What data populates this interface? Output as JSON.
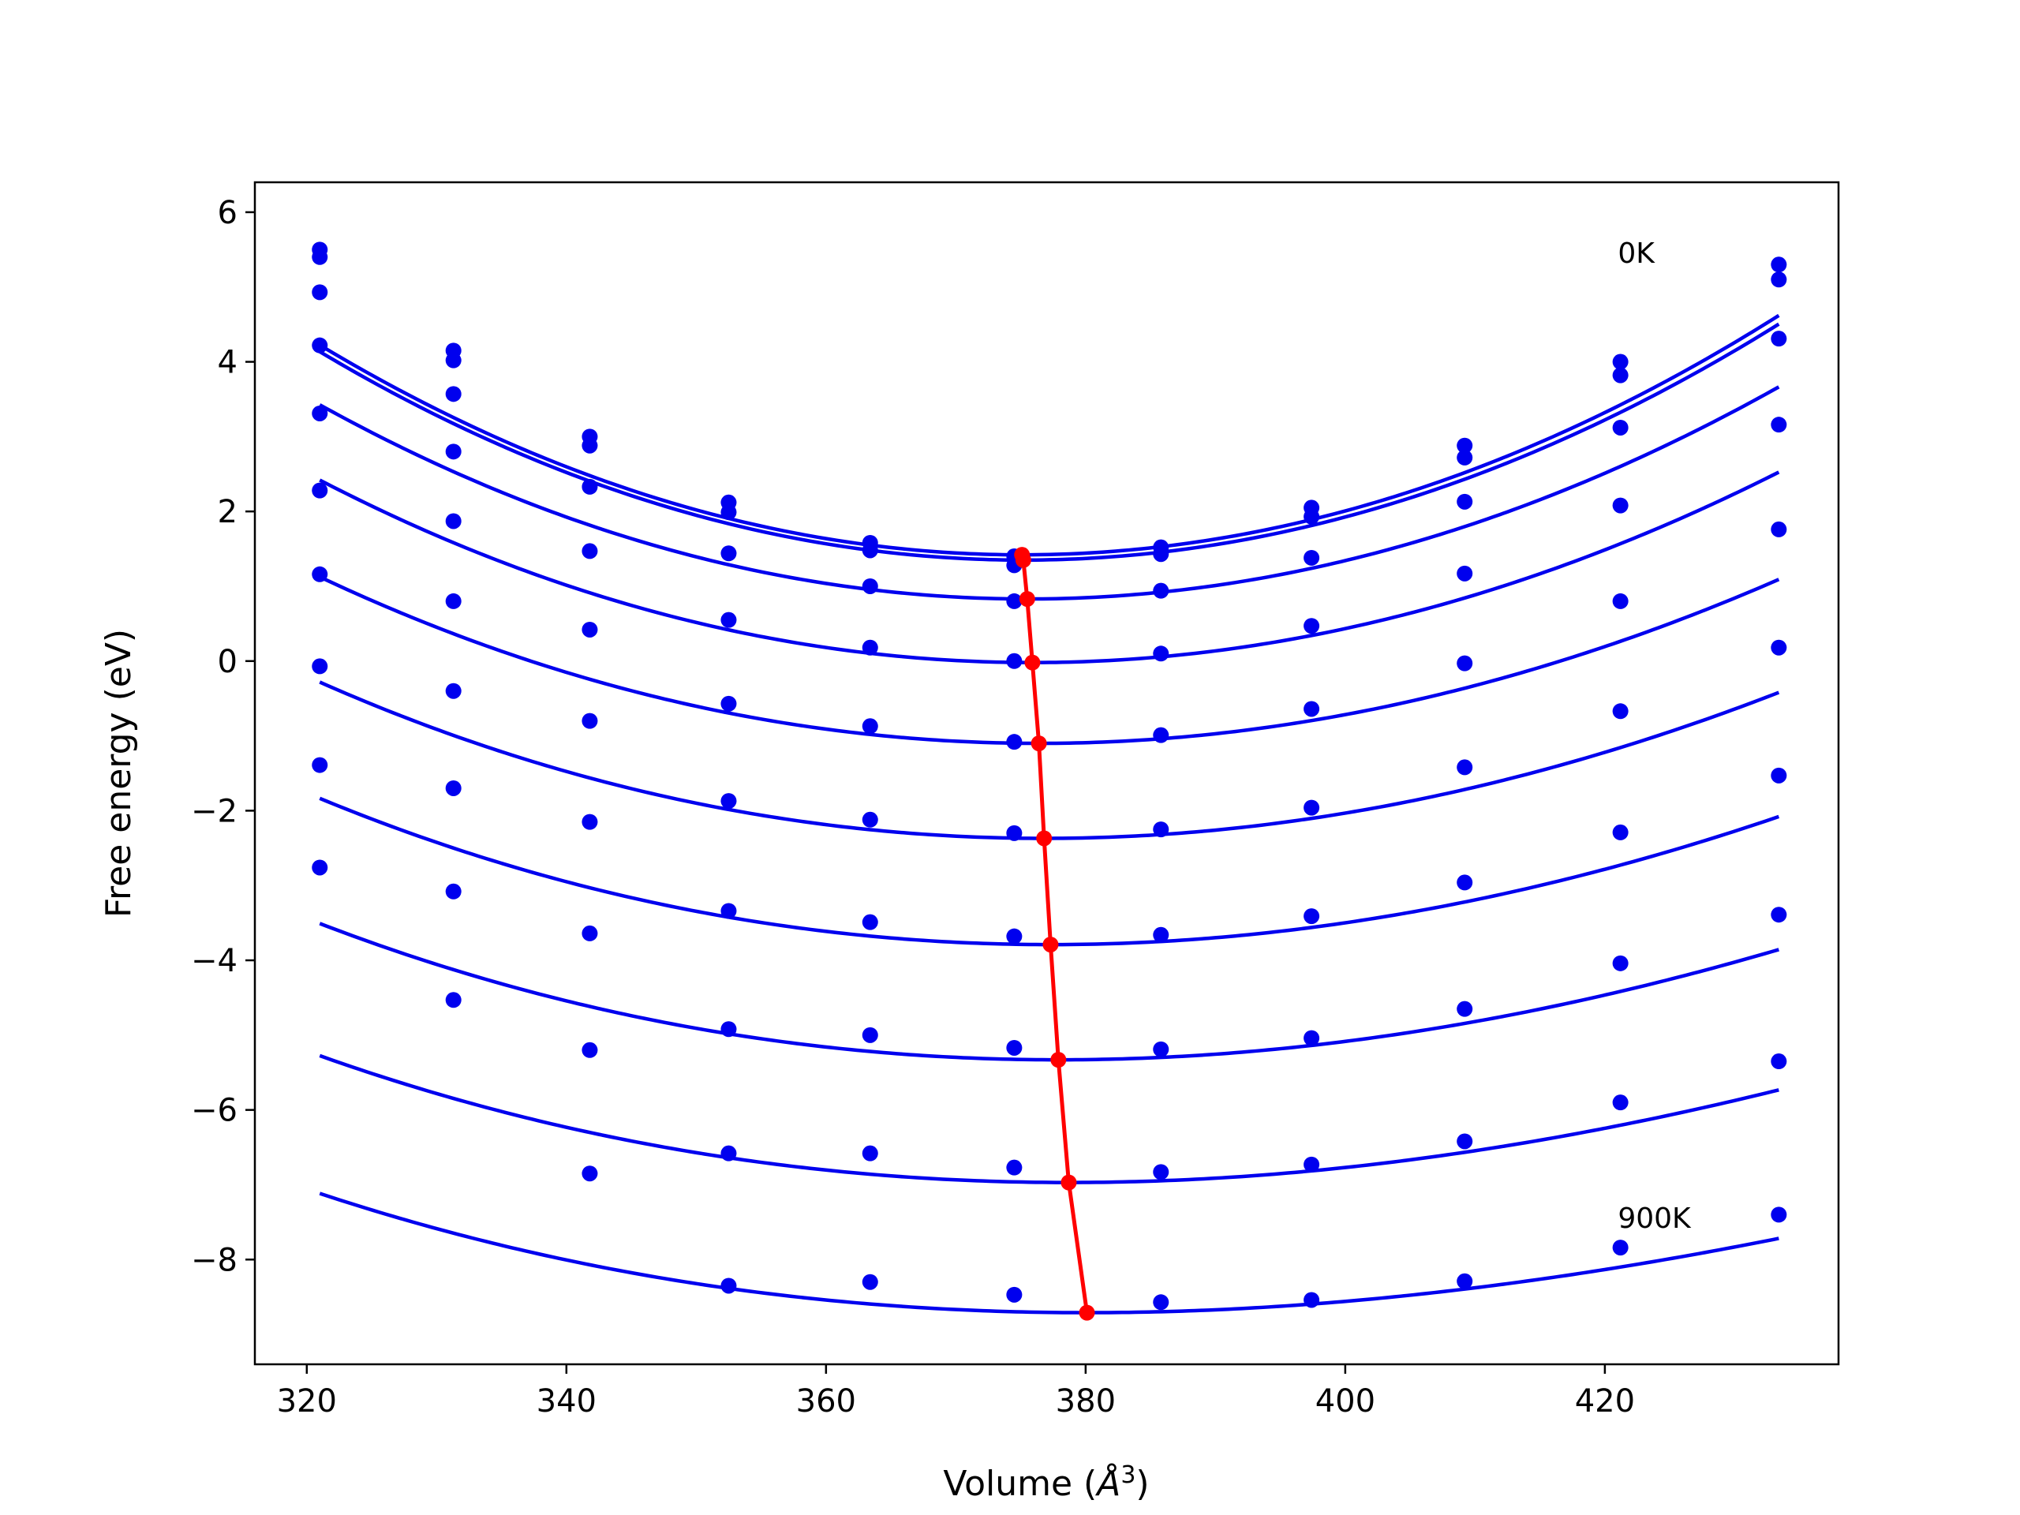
{
  "chart_data": {
    "type": "line",
    "xlabel": "Volume (Å³)",
    "xlabel_main": "Volume (",
    "xlabel_unit": "Å",
    "xlabel_exp": "3",
    "xlabel_close": ")",
    "ylabel": "Free energy (eV)",
    "xlim": [
      316,
      438
    ],
    "ylim": [
      -9.4,
      6.4
    ],
    "xticks": [
      320,
      340,
      360,
      380,
      400,
      420
    ],
    "yticks": [
      6,
      4,
      2,
      0,
      -2,
      -4,
      -6,
      -8
    ],
    "ytick_labels": [
      "6",
      "4",
      "2",
      "0",
      "−2",
      "−4",
      "−6",
      "−8"
    ],
    "grid": false,
    "colors": {
      "curves": "#0000ee",
      "points": "#0000ee",
      "minima": "#ff0000"
    },
    "annotations": [
      {
        "text": "0K",
        "x": 421,
        "y": 5.45
      },
      {
        "text": "900K",
        "x": 421,
        "y": -7.45
      }
    ],
    "volumes": [
      321.0,
      331.3,
      341.8,
      352.5,
      363.4,
      374.5,
      385.8,
      397.4,
      409.2,
      421.2,
      433.4
    ],
    "series": [
      {
        "points": [
          5.5,
          4.15,
          3.0,
          2.12,
          1.58,
          1.4,
          1.52,
          2.05,
          2.88,
          4.0,
          5.3
        ],
        "fit": {
          "vmin": 375.1,
          "fmin": 1.42,
          "a": 0.00095,
          "c": 1.5e-07
        }
      },
      {
        "points": [
          5.4,
          4.02,
          2.88,
          1.99,
          1.48,
          1.28,
          1.43,
          1.93,
          2.72,
          3.82,
          5.1
        ],
        "fit": {
          "vmin": 375.2,
          "fmin": 1.35,
          "a": 0.00094,
          "c": 1.5e-07
        }
      },
      {
        "points": [
          4.93,
          3.57,
          2.33,
          1.44,
          1.0,
          0.8,
          0.94,
          1.38,
          2.13,
          3.12,
          4.31
        ],
        "fit": {
          "vmin": 375.5,
          "fmin": 0.83,
          "a": 0.00086,
          "c": 2.5e-07
        }
      },
      {
        "points": [
          4.22,
          2.8,
          1.47,
          0.55,
          0.18,
          0.0,
          0.1,
          0.47,
          1.17,
          2.08,
          3.16
        ],
        "fit": {
          "vmin": 375.9,
          "fmin": -0.02,
          "a": 0.00079,
          "c": 3.5e-07
        }
      },
      {
        "points": [
          3.31,
          1.87,
          0.42,
          -0.57,
          -0.87,
          -1.08,
          -0.99,
          -0.64,
          -0.03,
          0.8,
          1.76
        ],
        "fit": {
          "vmin": 376.4,
          "fmin": -1.1,
          "a": 0.0007,
          "c": 4.5e-07
        }
      },
      {
        "points": [
          2.28,
          0.8,
          -0.8,
          -1.87,
          -2.12,
          -2.3,
          -2.25,
          -1.96,
          -1.42,
          -0.67,
          0.18
        ],
        "fit": {
          "vmin": 376.8,
          "fmin": -2.37,
          "a": 0.00064,
          "c": 5.5e-07
        }
      },
      {
        "points": [
          1.16,
          -0.4,
          -2.15,
          -3.34,
          -3.49,
          -3.68,
          -3.66,
          -3.41,
          -2.96,
          -2.29,
          -1.53
        ],
        "fit": {
          "vmin": 377.3,
          "fmin": -3.79,
          "a": 0.00058,
          "c": 6.5e-07
        }
      },
      {
        "points": [
          -0.07,
          -1.7,
          -3.64,
          -4.92,
          -5.0,
          -5.17,
          -5.19,
          -5.04,
          -4.65,
          -4.04,
          -3.39
        ],
        "fit": {
          "vmin": 377.9,
          "fmin": -5.33,
          "a": 0.00052,
          "c": 7.5e-07
        }
      },
      {
        "points": [
          -1.39,
          -3.08,
          -5.2,
          -6.58,
          -6.58,
          -6.77,
          -6.83,
          -6.73,
          -6.42,
          -5.9,
          -5.35
        ],
        "fit": {
          "vmin": 378.7,
          "fmin": -6.97,
          "a": 0.00046,
          "c": 8.5e-07
        }
      },
      {
        "points": [
          -2.76,
          -4.53,
          -6.85,
          -8.35,
          -8.3,
          -8.47,
          -8.57,
          -8.54,
          -8.29,
          -7.84,
          -7.4
        ],
        "fit": {
          "vmin": 380.1,
          "fmin": -8.71,
          "a": 0.0004,
          "c": 9.5e-07
        }
      }
    ],
    "minima": {
      "x": [
        375.1,
        375.2,
        375.5,
        375.9,
        376.4,
        376.8,
        377.3,
        377.9,
        378.7,
        380.1
      ],
      "y": [
        1.42,
        1.35,
        0.83,
        -0.02,
        -1.1,
        -2.37,
        -3.79,
        -5.33,
        -6.97,
        -8.71
      ]
    }
  }
}
